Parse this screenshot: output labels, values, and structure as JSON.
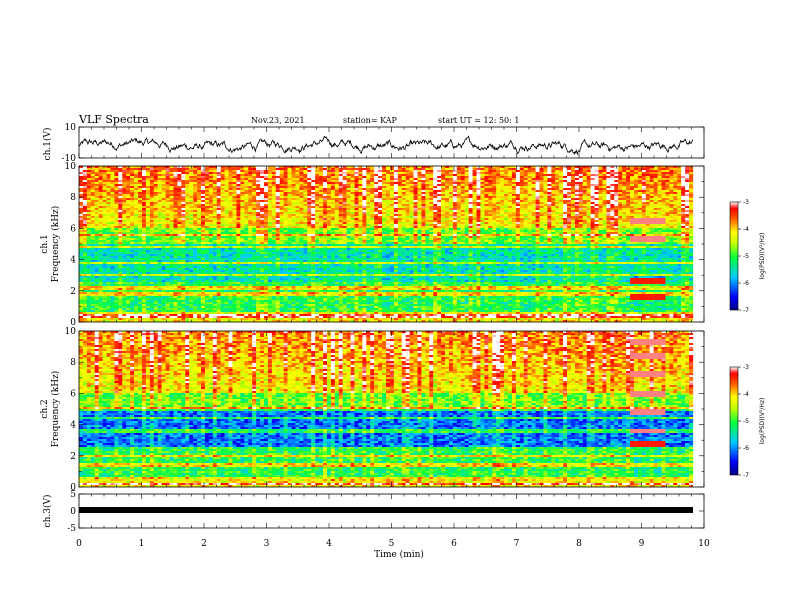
{
  "header": {
    "title": "VLF Spectra",
    "date": "Nov.23, 2021",
    "station": "station= KAP",
    "start": "start  UT  =   12: 50: 1"
  },
  "chart_data": [
    {
      "type": "line",
      "panel": "waveform-ch1",
      "ylabel": "ch.1(V)",
      "ylim": [
        -10,
        10
      ],
      "yticks": [
        10,
        -10
      ],
      "xlim": [
        0,
        10
      ],
      "description_values": "noisy waveform fluctuating roughly between -8 and 2 V, centered near -2 V"
    },
    {
      "type": "heatmap",
      "panel": "spectrogram-ch1",
      "ylabel": "ch.1\nFrequency (kHz)",
      "ylim": [
        0,
        10
      ],
      "yticks": [
        0,
        2,
        4,
        6,
        8,
        10
      ],
      "xlim": [
        0,
        10
      ],
      "colorbar": {
        "label": "log(PSD)(V²/Hz)",
        "ticks": [
          -3,
          -4,
          -5,
          -6,
          -7
        ],
        "range": [
          -7,
          -3
        ]
      },
      "bursts_x": [
        8.8,
        9.4
      ]
    },
    {
      "type": "heatmap",
      "panel": "spectrogram-ch2",
      "ylabel": "ch.2\nFrequency (kHz)",
      "ylim": [
        0,
        10
      ],
      "yticks": [
        0,
        2,
        4,
        6,
        8,
        10
      ],
      "xlim": [
        0,
        10
      ],
      "colorbar": {
        "label": "log(PSD)(V²/Hz)",
        "ticks": [
          -3,
          -4,
          -5,
          -6,
          -7
        ],
        "range": [
          -7,
          -3
        ]
      },
      "bursts_x": [
        8.8,
        9.4
      ]
    },
    {
      "type": "line",
      "panel": "waveform-ch3",
      "ylabel": "ch.3(V)",
      "ylim": [
        -5,
        5
      ],
      "yticks": [
        5,
        0,
        -5
      ],
      "xlim": [
        0,
        10
      ],
      "xlabel": "Time  (min)",
      "xticks": [
        0,
        1,
        2,
        3,
        4,
        5,
        6,
        7,
        8,
        9,
        10
      ]
    }
  ],
  "labels": {
    "ch1_top": "ch.1",
    "ch1_bottom": "Frequency  (kHz)",
    "ch2_top": "ch.2",
    "ch2_bottom": "Frequency  (kHz)",
    "cbar_label": "log(PSD)(V²/Hz)"
  }
}
